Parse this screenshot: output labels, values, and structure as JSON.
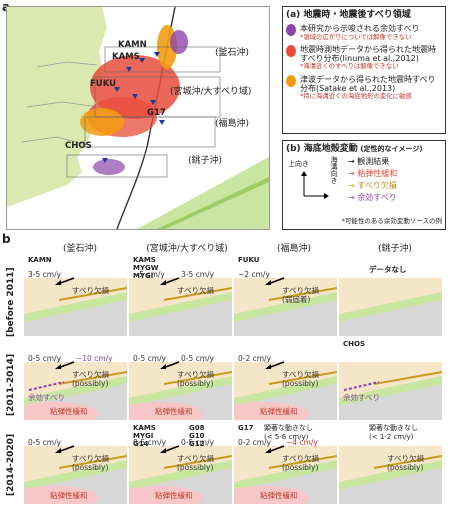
{
  "panel_a": {
    "letter": "a",
    "map_labels": {
      "kamaishi": "(釜石沖)",
      "miyagi": "(宮城沖/大すべり域)",
      "fukushima": "(福島沖)",
      "choshi": "(銚子沖)",
      "stations": [
        "KAMN",
        "KAMS",
        "FUKU",
        "G17",
        "CHOS"
      ]
    },
    "legend_a": {
      "title": "(a) 地震時・地震後すべり領域",
      "items": [
        {
          "text": "本研究から示唆される余効すべり",
          "note": "*領域の広がりについては解像できない",
          "color": "#8e44ad"
        },
        {
          "text": "地震時測地データから得られた地震時すべり分布(Iinuma et al.,2012)",
          "note": "*海溝近くのすべりは解像できない",
          "color": "#e74c3c"
        },
        {
          "text": "津波データから得られた地震時すべり分布(Satake et al.,2013)",
          "note": "*特に海溝近くの海底地形の変化に敏感",
          "color": "#f39c12"
        }
      ]
    },
    "legend_b": {
      "title": "(b) 海底地殻変動",
      "title_note": "(定性的なイメージ)",
      "axis_up": "上向き",
      "axis_trench": "海溝向き",
      "items": [
        {
          "text": "観測結果",
          "color": "#000000"
        },
        {
          "text": "粘弾性緩和",
          "color": "#e74c3c"
        },
        {
          "text": "すべり欠損",
          "color": "#d4a017"
        },
        {
          "text": "余効すべり",
          "color": "#8e44ad"
        }
      ],
      "footnote": "*可能性のある余効変動ソースの例"
    }
  },
  "panel_b": {
    "letter": "b",
    "columns": [
      "(釜石沖)",
      "(宮城沖/大すべり域)",
      "(福島沖)",
      "(銚子沖)"
    ],
    "rows": [
      "[before 2011]",
      "[2011-2014]",
      "[2014-2020]"
    ],
    "cells": {
      "r0c0": {
        "stations": "KAMN",
        "rate": "3-5 cm/y",
        "label": "すべり欠損"
      },
      "r0c1": {
        "stations": "KAMS\nMYGW\nMYGI",
        "rate": "~5 cm/y",
        "rate2": "3-5 cm/y",
        "label": "すべり欠損"
      },
      "r0c2": {
        "stations": "FUKU",
        "rate": "~2 cm/y",
        "label": "すべり欠損\n(弱固着)"
      },
      "r0c3": {
        "nodata": "データなし"
      },
      "r1c0": {
        "rate": "0-5 cm/y",
        "rate2": "~10 cm/y",
        "label": "すべり欠損\n(possibly)",
        "post": "余効すべり",
        "visco": "粘弾性緩和"
      },
      "r1c1": {
        "rate": "0-5 cm/y",
        "rate2": "0-5 cm/y",
        "label": "すべり欠損\n(possibly)",
        "visco": "粘弾性緩和"
      },
      "r1c2": {
        "rate": "0-2 cm/y",
        "label": "すべり欠損\n(possibly)",
        "visco": "粘弾性緩和"
      },
      "r1c3": {
        "stations": "CHOS",
        "post": "余効すべり"
      },
      "r2c0": {
        "rate": "0-5 cm/y",
        "label": "すべり欠損\n(possibly)",
        "visco": "粘弾性緩和"
      },
      "r2c1": {
        "stations": "KAMS\nMYGI\nG14",
        "stations2": "G08\nG10\nG12",
        "rate": "0-5 cm/y",
        "rate2": "0-5 cm/y",
        "label": "すべり欠損\n(possibly)",
        "visco": "粘弾性緩和"
      },
      "r2c2": {
        "stations": "G17",
        "rate": "0-2 cm/y",
        "rate2": "~4 cm/y",
        "note": "顕著な動きなし\n(< 5-6 cm/y)",
        "label": "すべり欠損\n(possibly)",
        "visco": "粘弾性緩和"
      },
      "r2c3": {
        "note": "顕著な動きなし\n(< 1-2 cm/y)",
        "label": "すべり欠損\n(possibly)"
      }
    }
  },
  "colors": {
    "land": "#dbe9b0",
    "sea": "#ffffff",
    "plate": "#c8e6a0",
    "slab": "#bdbdbd",
    "visco": "#f7c6c6",
    "crust": "#f5e6c8"
  }
}
